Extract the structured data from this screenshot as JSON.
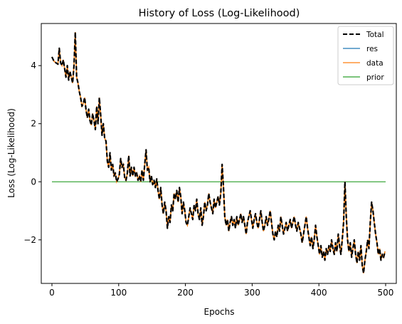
{
  "chart_data": {
    "type": "line",
    "title": "History of Loss (Log-Likelihood)",
    "xlabel": "Epochs",
    "ylabel": "Loss (Log-Likelihood)",
    "xlim": [
      -16,
      516
    ],
    "ylim": [
      -3.5,
      5.45
    ],
    "xticks": [
      0,
      100,
      200,
      300,
      400,
      500
    ],
    "yticks": [
      -2,
      0,
      2,
      4
    ],
    "ytick_labels": [
      "−2",
      "0",
      "2",
      "4"
    ],
    "grid": false,
    "legend_position": "top-right",
    "series": [
      {
        "name": "Total",
        "color": "#000000",
        "style": "dashed"
      },
      {
        "name": "res",
        "color": "#1f77b4",
        "style": "solid"
      },
      {
        "name": "data",
        "color": "#ff7f0e",
        "style": "solid"
      },
      {
        "name": "prior",
        "color": "#2ca02c",
        "style": "solid"
      }
    ],
    "loss_points": [
      [
        0,
        4.3
      ],
      [
        3,
        4.15
      ],
      [
        6,
        4.1
      ],
      [
        9,
        4.05
      ],
      [
        11,
        4.6
      ],
      [
        13,
        4.1
      ],
      [
        15,
        4.0
      ],
      [
        17,
        4.2
      ],
      [
        19,
        3.9
      ],
      [
        21,
        3.6
      ],
      [
        23,
        4.0
      ],
      [
        25,
        3.5
      ],
      [
        27,
        3.8
      ],
      [
        29,
        3.6
      ],
      [
        31,
        3.4
      ],
      [
        33,
        4.0
      ],
      [
        35,
        5.15
      ],
      [
        37,
        3.6
      ],
      [
        39,
        3.4
      ],
      [
        41,
        3.1
      ],
      [
        43,
        2.9
      ],
      [
        45,
        2.6
      ],
      [
        47,
        2.7
      ],
      [
        49,
        2.9
      ],
      [
        51,
        2.5
      ],
      [
        53,
        2.2
      ],
      [
        55,
        2.5
      ],
      [
        57,
        2.1
      ],
      [
        59,
        1.95
      ],
      [
        61,
        2.35
      ],
      [
        63,
        2.1
      ],
      [
        65,
        1.8
      ],
      [
        67,
        2.6
      ],
      [
        69,
        2.0
      ],
      [
        71,
        2.9
      ],
      [
        73,
        2.3
      ],
      [
        75,
        1.6
      ],
      [
        77,
        2.0
      ],
      [
        79,
        1.5
      ],
      [
        81,
        1.4
      ],
      [
        83,
        0.7
      ],
      [
        85,
        0.5
      ],
      [
        87,
        1.0
      ],
      [
        89,
        0.4
      ],
      [
        91,
        0.6
      ],
      [
        93,
        0.2
      ],
      [
        95,
        0.3
      ],
      [
        97,
        0.0
      ],
      [
        99,
        0.1
      ],
      [
        101,
        0.25
      ],
      [
        103,
        0.8
      ],
      [
        105,
        0.5
      ],
      [
        107,
        0.6
      ],
      [
        109,
        0.15
      ],
      [
        111,
        0.05
      ],
      [
        113,
        0.3
      ],
      [
        115,
        0.9
      ],
      [
        117,
        0.2
      ],
      [
        119,
        0.5
      ],
      [
        121,
        0.2
      ],
      [
        123,
        0.5
      ],
      [
        125,
        0.2
      ],
      [
        127,
        0.3
      ],
      [
        129,
        0.05
      ],
      [
        131,
        0.2
      ],
      [
        133,
        0.0
      ],
      [
        135,
        0.4
      ],
      [
        137,
        0.05
      ],
      [
        139,
        0.6
      ],
      [
        141,
        1.1
      ],
      [
        143,
        0.4
      ],
      [
        145,
        0.5
      ],
      [
        147,
        0.0
      ],
      [
        149,
        0.2
      ],
      [
        151,
        -0.1
      ],
      [
        153,
        0.05
      ],
      [
        155,
        -0.2
      ],
      [
        157,
        0.1
      ],
      [
        159,
        -0.3
      ],
      [
        161,
        -0.6
      ],
      [
        163,
        -0.2
      ],
      [
        165,
        -0.8
      ],
      [
        167,
        -1.1
      ],
      [
        169,
        -0.7
      ],
      [
        171,
        -1.0
      ],
      [
        173,
        -1.6
      ],
      [
        175,
        -1.2
      ],
      [
        177,
        -1.4
      ],
      [
        179,
        -0.8
      ],
      [
        181,
        -1.0
      ],
      [
        183,
        -0.4
      ],
      [
        185,
        -0.6
      ],
      [
        187,
        -0.3
      ],
      [
        189,
        -0.7
      ],
      [
        191,
        -0.2
      ],
      [
        193,
        -0.5
      ],
      [
        195,
        -1.1
      ],
      [
        197,
        -0.7
      ],
      [
        199,
        -1.0
      ],
      [
        201,
        -1.4
      ],
      [
        203,
        -1.5
      ],
      [
        205,
        -1.2
      ],
      [
        207,
        -0.9
      ],
      [
        209,
        -1.1
      ],
      [
        211,
        -1.3
      ],
      [
        213,
        -0.8
      ],
      [
        215,
        -1.0
      ],
      [
        217,
        -0.6
      ],
      [
        219,
        -1.1
      ],
      [
        221,
        -1.3
      ],
      [
        223,
        -0.9
      ],
      [
        225,
        -1.5
      ],
      [
        227,
        -1.2
      ],
      [
        229,
        -0.7
      ],
      [
        231,
        -1.0
      ],
      [
        233,
        -0.8
      ],
      [
        235,
        -0.4
      ],
      [
        237,
        -0.7
      ],
      [
        239,
        -0.9
      ],
      [
        241,
        -1.1
      ],
      [
        243,
        -0.6
      ],
      [
        245,
        -0.9
      ],
      [
        247,
        -0.7
      ],
      [
        249,
        -0.5
      ],
      [
        251,
        -0.8
      ],
      [
        253,
        -0.4
      ],
      [
        255,
        0.6
      ],
      [
        257,
        -0.2
      ],
      [
        259,
        -1.2
      ],
      [
        261,
        -1.5
      ],
      [
        263,
        -1.3
      ],
      [
        265,
        -1.7
      ],
      [
        267,
        -1.4
      ],
      [
        269,
        -1.2
      ],
      [
        271,
        -1.5
      ],
      [
        273,
        -1.3
      ],
      [
        275,
        -1.6
      ],
      [
        277,
        -1.2
      ],
      [
        279,
        -1.5
      ],
      [
        281,
        -1.3
      ],
      [
        283,
        -1.1
      ],
      [
        285,
        -1.4
      ],
      [
        287,
        -1.2
      ],
      [
        289,
        -1.5
      ],
      [
        291,
        -1.8
      ],
      [
        293,
        -1.4
      ],
      [
        295,
        -1.2
      ],
      [
        297,
        -1.0
      ],
      [
        299,
        -1.3
      ],
      [
        301,
        -1.6
      ],
      [
        303,
        -1.3
      ],
      [
        305,
        -1.1
      ],
      [
        307,
        -1.4
      ],
      [
        309,
        -1.6
      ],
      [
        311,
        -1.3
      ],
      [
        313,
        -1.0
      ],
      [
        315,
        -1.4
      ],
      [
        317,
        -1.7
      ],
      [
        319,
        -1.5
      ],
      [
        321,
        -1.2
      ],
      [
        323,
        -1.5
      ],
      [
        325,
        -1.3
      ],
      [
        327,
        -1.0
      ],
      [
        329,
        -1.4
      ],
      [
        331,
        -1.8
      ],
      [
        333,
        -2.0
      ],
      [
        335,
        -1.7
      ],
      [
        337,
        -1.9
      ],
      [
        339,
        -1.5
      ],
      [
        341,
        -1.7
      ],
      [
        343,
        -1.2
      ],
      [
        345,
        -1.5
      ],
      [
        347,
        -1.8
      ],
      [
        349,
        -1.6
      ],
      [
        351,
        -1.4
      ],
      [
        353,
        -1.7
      ],
      [
        355,
        -1.5
      ],
      [
        357,
        -1.3
      ],
      [
        359,
        -1.6
      ],
      [
        361,
        -1.4
      ],
      [
        363,
        -1.2
      ],
      [
        365,
        -1.5
      ],
      [
        367,
        -1.7
      ],
      [
        369,
        -1.4
      ],
      [
        371,
        -1.6
      ],
      [
        373,
        -1.8
      ],
      [
        375,
        -2.1
      ],
      [
        377,
        -1.8
      ],
      [
        379,
        -1.5
      ],
      [
        381,
        -1.2
      ],
      [
        383,
        -1.6
      ],
      [
        385,
        -1.9
      ],
      [
        387,
        -2.2
      ],
      [
        389,
        -1.9
      ],
      [
        391,
        -2.3
      ],
      [
        393,
        -2.0
      ],
      [
        395,
        -1.5
      ],
      [
        397,
        -1.9
      ],
      [
        399,
        -2.2
      ],
      [
        401,
        -2.5
      ],
      [
        403,
        -2.2
      ],
      [
        405,
        -2.6
      ],
      [
        407,
        -2.4
      ],
      [
        409,
        -2.7
      ],
      [
        411,
        -2.3
      ],
      [
        413,
        -2.5
      ],
      [
        415,
        -2.2
      ],
      [
        417,
        -2.4
      ],
      [
        419,
        -2.0
      ],
      [
        421,
        -2.3
      ],
      [
        423,
        -2.5
      ],
      [
        425,
        -2.1
      ],
      [
        427,
        -2.4
      ],
      [
        429,
        -1.8
      ],
      [
        431,
        -2.2
      ],
      [
        433,
        -2.5
      ],
      [
        435,
        -2.0
      ],
      [
        437,
        -1.4
      ],
      [
        439,
        0.0
      ],
      [
        441,
        -1.2
      ],
      [
        443,
        -2.0
      ],
      [
        445,
        -2.4
      ],
      [
        447,
        -2.1
      ],
      [
        449,
        -2.6
      ],
      [
        451,
        -2.3
      ],
      [
        453,
        -2.0
      ],
      [
        455,
        -2.5
      ],
      [
        457,
        -2.8
      ],
      [
        459,
        -2.4
      ],
      [
        461,
        -2.7
      ],
      [
        463,
        -2.2
      ],
      [
        465,
        -2.9
      ],
      [
        467,
        -3.15
      ],
      [
        469,
        -2.7
      ],
      [
        471,
        -2.4
      ],
      [
        473,
        -2.0
      ],
      [
        475,
        -2.3
      ],
      [
        477,
        -1.4
      ],
      [
        479,
        -0.7
      ],
      [
        481,
        -1.0
      ],
      [
        483,
        -1.4
      ],
      [
        485,
        -1.8
      ],
      [
        487,
        -2.1
      ],
      [
        489,
        -2.5
      ],
      [
        491,
        -2.3
      ],
      [
        493,
        -2.7
      ],
      [
        495,
        -2.5
      ],
      [
        497,
        -2.6
      ],
      [
        499,
        -2.4
      ]
    ],
    "prior_points": [
      [
        0,
        0
      ],
      [
        500,
        0
      ]
    ]
  }
}
